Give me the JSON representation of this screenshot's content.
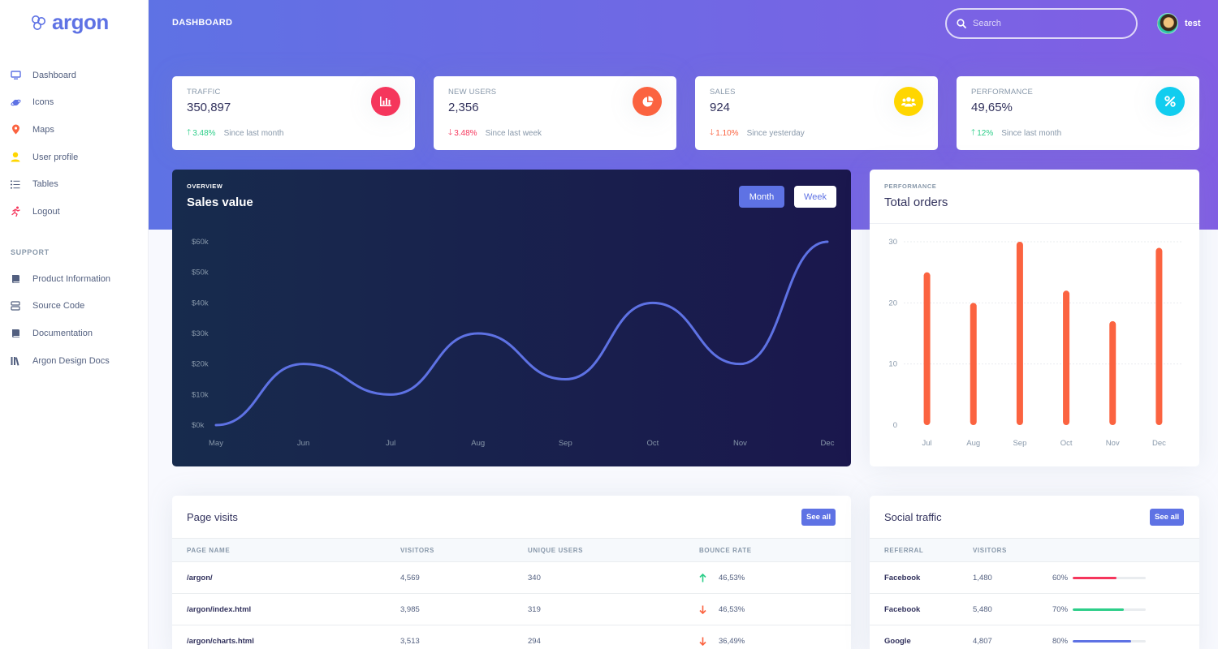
{
  "brand": {
    "name": "argon"
  },
  "sidebar": {
    "items": [
      {
        "label": "Dashboard",
        "icon": "monitor-icon",
        "color": "#5e72e4"
      },
      {
        "label": "Icons",
        "icon": "planet-icon",
        "color": "#5e72e4"
      },
      {
        "label": "Maps",
        "icon": "pin-icon",
        "color": "#fb6340"
      },
      {
        "label": "User profile",
        "icon": "user-icon",
        "color": "#ffd600"
      },
      {
        "label": "Tables",
        "icon": "list-icon",
        "color": "#525f7f"
      },
      {
        "label": "Logout",
        "icon": "run-icon",
        "color": "#f5365c"
      }
    ],
    "support_heading": "SUPPORT",
    "support_items": [
      {
        "label": "Product Information",
        "icon": "book-icon"
      },
      {
        "label": "Source Code",
        "icon": "database-icon"
      },
      {
        "label": "Documentation",
        "icon": "book-icon"
      },
      {
        "label": "Argon Design Docs",
        "icon": "library-icon"
      }
    ]
  },
  "header": {
    "title": "DASHBOARD",
    "search_placeholder": "Search",
    "user_name": "test"
  },
  "stats": [
    {
      "title": "TRAFFIC",
      "value": "350,897",
      "change": "3.48%",
      "direction": "up",
      "since": "Since last month",
      "icon": "bar-chart-icon",
      "icon_bg": "#f5365c"
    },
    {
      "title": "NEW USERS",
      "value": "2,356",
      "change": "3.48%",
      "direction": "down",
      "since": "Since last week",
      "icon": "pie-chart-icon",
      "icon_bg": "#fb6340"
    },
    {
      "title": "SALES",
      "value": "924",
      "change": "1.10%",
      "direction": "down-orange",
      "since": "Since yesterday",
      "icon": "users-icon",
      "icon_bg": "#ffd600"
    },
    {
      "title": "PERFORMANCE",
      "value": "49,65%",
      "change": "12%",
      "direction": "up",
      "since": "Since last month",
      "icon": "percent-icon",
      "icon_bg": "#11cdef"
    }
  ],
  "sales_card": {
    "subtitle": "OVERVIEW",
    "title": "Sales value",
    "month_label": "Month",
    "week_label": "Week"
  },
  "orders_card": {
    "subtitle": "PERFORMANCE",
    "title": "Total orders"
  },
  "chart_data": [
    {
      "type": "line",
      "title": "Sales value",
      "categories": [
        "May",
        "Jun",
        "Jul",
        "Aug",
        "Sep",
        "Oct",
        "Nov",
        "Dec"
      ],
      "values": [
        0,
        20,
        10,
        30,
        15,
        40,
        20,
        60
      ],
      "y_ticks": [
        "$0k",
        "$10k",
        "$20k",
        "$30k",
        "$40k",
        "$50k",
        "$60k"
      ],
      "ylim": [
        0,
        60
      ],
      "color": "#5e72e4"
    },
    {
      "type": "bar",
      "title": "Total orders",
      "categories": [
        "Jul",
        "Aug",
        "Sep",
        "Oct",
        "Nov",
        "Dec"
      ],
      "values": [
        25,
        20,
        30,
        22,
        17,
        29
      ],
      "y_ticks": [
        "0",
        "10",
        "20",
        "30"
      ],
      "ylim": [
        0,
        30
      ],
      "color": "#fb6340"
    }
  ],
  "page_visits": {
    "title": "Page visits",
    "see_all": "See all",
    "columns": [
      "PAGE NAME",
      "VISITORS",
      "UNIQUE USERS",
      "BOUNCE RATE"
    ],
    "rows": [
      {
        "page": "/argon/",
        "visitors": "4,569",
        "unique": "340",
        "bounce": "46,53%",
        "trend": "up"
      },
      {
        "page": "/argon/index.html",
        "visitors": "3,985",
        "unique": "319",
        "bounce": "46,53%",
        "trend": "down"
      },
      {
        "page": "/argon/charts.html",
        "visitors": "3,513",
        "unique": "294",
        "bounce": "36,49%",
        "trend": "down"
      }
    ]
  },
  "social_traffic": {
    "title": "Social traffic",
    "see_all": "See all",
    "columns": [
      "REFERRAL",
      "VISITORS"
    ],
    "rows": [
      {
        "referral": "Facebook",
        "visitors": "1,480",
        "percent": "60%",
        "fraction": 0.6,
        "color": "#f5365c"
      },
      {
        "referral": "Facebook",
        "visitors": "5,480",
        "percent": "70%",
        "fraction": 0.7,
        "color": "#2dce89"
      },
      {
        "referral": "Google",
        "visitors": "4,807",
        "percent": "80%",
        "fraction": 0.8,
        "color": "#5e72e4"
      }
    ]
  }
}
